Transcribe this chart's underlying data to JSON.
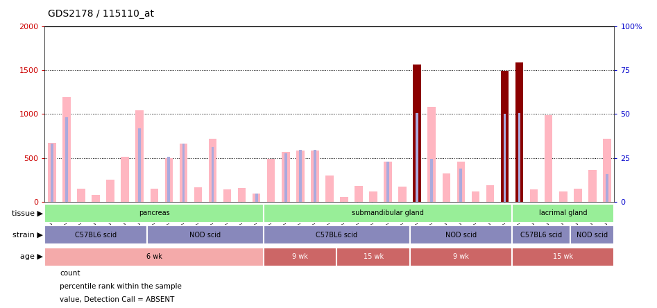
{
  "title": "GDS2178 / 115110_at",
  "samples": [
    "GSM111333",
    "GSM111334",
    "GSM111335",
    "GSM111336",
    "GSM111337",
    "GSM111338",
    "GSM111339",
    "GSM111340",
    "GSM111341",
    "GSM111342",
    "GSM111343",
    "GSM111344",
    "GSM111345",
    "GSM111346",
    "GSM111347",
    "GSM111353",
    "GSM111354",
    "GSM111355",
    "GSM111356",
    "GSM111357",
    "GSM111348",
    "GSM111349",
    "GSM111350",
    "GSM111351",
    "GSM111352",
    "GSM111358",
    "GSM111359",
    "GSM111360",
    "GSM111361",
    "GSM111362",
    "GSM111363",
    "GSM111364",
    "GSM111365",
    "GSM111366",
    "GSM111367",
    "GSM111368",
    "GSM111369",
    "GSM111370",
    "GSM111371"
  ],
  "values": [
    670,
    1190,
    150,
    75,
    255,
    510,
    1045,
    150,
    500,
    660,
    165,
    720,
    140,
    155,
    95,
    490,
    570,
    580,
    580,
    300,
    55,
    180,
    120,
    460,
    175,
    1565,
    1080,
    325,
    460,
    120,
    185,
    1490,
    1590,
    140,
    990,
    120,
    150,
    360,
    715
  ],
  "ranks": [
    660,
    960,
    1,
    1,
    1,
    1,
    840,
    1,
    510,
    660,
    1,
    620,
    1,
    1,
    90,
    1,
    555,
    595,
    590,
    1,
    1,
    1,
    1,
    455,
    1,
    1010,
    490,
    1,
    375,
    1,
    1,
    1005,
    1010,
    1,
    1,
    1,
    1,
    1,
    315
  ],
  "is_count": [
    false,
    false,
    false,
    false,
    false,
    false,
    false,
    false,
    false,
    false,
    false,
    false,
    false,
    false,
    false,
    false,
    false,
    false,
    false,
    false,
    false,
    false,
    false,
    false,
    false,
    true,
    false,
    false,
    false,
    false,
    false,
    true,
    true,
    false,
    false,
    false,
    false,
    false,
    false
  ],
  "tissue_groups": [
    {
      "label": "pancreas",
      "start": 0,
      "end": 15
    },
    {
      "label": "submandibular gland",
      "start": 15,
      "end": 32
    },
    {
      "label": "lacrimal gland",
      "start": 32,
      "end": 39
    }
  ],
  "strain_groups": [
    {
      "label": "C57BL6 scid",
      "start": 0,
      "end": 7
    },
    {
      "label": "NOD scid",
      "start": 7,
      "end": 15
    },
    {
      "label": "C57BL6 scid",
      "start": 15,
      "end": 25
    },
    {
      "label": "NOD scid",
      "start": 25,
      "end": 32
    },
    {
      "label": "C57BL6 scid",
      "start": 32,
      "end": 36
    },
    {
      "label": "NOD scid",
      "start": 36,
      "end": 39
    }
  ],
  "age_groups": [
    {
      "label": "6 wk",
      "start": 0,
      "end": 15,
      "color": "#F4AAAA"
    },
    {
      "label": "9 wk",
      "start": 15,
      "end": 20,
      "color": "#CC6666"
    },
    {
      "label": "15 wk",
      "start": 20,
      "end": 25,
      "color": "#CC6666"
    },
    {
      "label": "9 wk",
      "start": 25,
      "end": 32,
      "color": "#CC6666"
    },
    {
      "label": "15 wk",
      "start": 32,
      "end": 39,
      "color": "#CC6666"
    }
  ],
  "bar_color": "#FFB6C1",
  "rank_color": "#AAAADD",
  "count_color": "#8B0000",
  "left_axis_color": "#CC0000",
  "right_axis_color": "#0000CC",
  "tissue_color": "#98EE98",
  "strain_color": "#8888BB",
  "n_samples": 39
}
